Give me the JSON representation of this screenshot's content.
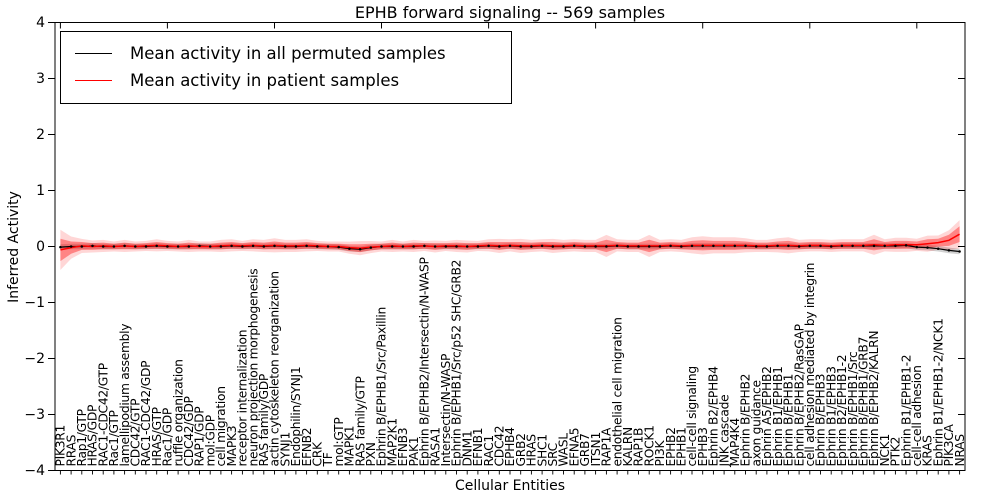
{
  "figure": {
    "title": "EPHB forward signaling -- 569 samples",
    "xlabel": "Cellular Entities",
    "ylabel": "Inferred Activity"
  },
  "chart_data": {
    "type": "line",
    "title": "EPHB forward signaling -- 569 samples",
    "xlabel": "Cellular Entities",
    "ylabel": "Inferred Activity",
    "ylim": [
      -4,
      4
    ],
    "yticks": [
      -4,
      -3,
      -2,
      -1,
      0,
      1,
      2,
      3,
      4
    ],
    "grid": false,
    "legend_position": "upper left",
    "categories": [
      "PIK3R1",
      "RRAS",
      "Rap1/GTP",
      "HRAS/GDP",
      "RAC1-CDC42/GTP",
      "Rac1/GTP",
      "lamellipodium assembly",
      "CDC42/GTP",
      "RAC1-CDC42/GDP",
      "HRAS/GTP",
      "Rac1/GDP",
      "ruffle organization",
      "CDC42/GDP",
      "RAP1/GDP",
      "mol:GDP",
      "cell migration",
      "MAPK3",
      "receptor internalization",
      "neuron projection morphogenesis",
      "RAS family/GDP",
      "actin cytoskeleton reorganization",
      "SYNJ1",
      "Endophilin/SYNJ1",
      "EFNB2",
      "CRK",
      "TF",
      "mol:GTP",
      "MAPK1",
      "RAS family/GTP",
      "PXN",
      "Ephrin B/EPHB1/Src/Paxillin",
      "MAP2K1",
      "EFNB3",
      "PAK1",
      "Ephrin B/EPHB2/Intersectin/N-WASP",
      "RASA1",
      "Intersectin/N-WASP",
      "Ephrin B/EPHB1/Src/p52 SHC/GRB2",
      "DNM1",
      "EFNB1",
      "RAC1",
      "CDC42",
      "EPHB4",
      "GRB2",
      "HRAS",
      "SHC1",
      "SRC",
      "WASL",
      "EFNA5",
      "GRB7",
      "ITSN1",
      "RAP1A",
      "endothelial cell migration",
      "KALRN",
      "RAP1B",
      "ROCK1",
      "PI3K",
      "EPHB2",
      "EPHB1",
      "cell-cell signaling",
      "EPHB3",
      "Ephrin B2/EPHB4",
      "JNK cascade",
      "MAP4K4",
      "Ephrin B/EPHB2",
      "axon guidance",
      "Ephrin A5/EPHB2",
      "Ephrin B1/EPHB1",
      "Ephrin B/EPHB1",
      "Ephrin B/EPHB2/RasGAP",
      "cell adhesion mediated by integrin",
      "Ephrin B/EPHB3",
      "Ephrin B1/EPHB3",
      "Ephrin B2/EPHB1-2",
      "Ephrin B/EPHB1/Src",
      "Ephrin B/EPHB1/GRB7",
      "Ephrin B/EPHB2/KALRN",
      "NCK1",
      "PTK2",
      "Ephrin B1/EPHB1-2",
      "cell-cell adhesion",
      "KRAS",
      "Ephrin B1/EPHB1-2/NCK1",
      "PIK3CA",
      "NRAS"
    ],
    "series": [
      {
        "name": "Mean activity in all permuted samples",
        "color": "#000000",
        "marker": "dot",
        "band_halfwidth": 0.05,
        "values": [
          -0.01,
          0,
          0,
          0.01,
          0,
          0,
          0.01,
          0,
          0,
          0.01,
          0,
          0,
          0,
          0.01,
          0,
          0,
          0.01,
          0,
          0.01,
          0,
          0.01,
          0,
          0,
          0.01,
          0,
          0,
          -0.01,
          -0.04,
          -0.05,
          -0.02,
          0,
          0,
          0,
          0,
          0.01,
          0,
          0,
          0,
          0,
          0,
          0.01,
          0,
          0.01,
          0,
          0,
          0.01,
          0,
          0,
          0.01,
          0,
          0,
          0,
          0.01,
          0,
          0,
          0,
          0,
          0.01,
          0,
          0.01,
          0.01,
          0.01,
          0.01,
          0.01,
          0.01,
          0,
          0,
          0.01,
          0.01,
          0,
          0.01,
          0.01,
          0,
          0.01,
          0.01,
          0.01,
          0.01,
          0.01,
          0.01,
          0.02,
          -0.01,
          -0.02,
          -0.04,
          -0.07,
          -0.09
        ]
      },
      {
        "name": "Mean activity in patient samples",
        "color": "#ff0000",
        "marker": "none",
        "band_halfwidths": [
          0.2,
          0.11,
          0.07,
          0.06,
          0.06,
          0.05,
          0.06,
          0.05,
          0.05,
          0.06,
          0.05,
          0.05,
          0.06,
          0.05,
          0.05,
          0.06,
          0.06,
          0.05,
          0.06,
          0.06,
          0.07,
          0.06,
          0.06,
          0.06,
          0.05,
          0.05,
          0.05,
          0.06,
          0.07,
          0.06,
          0.05,
          0.06,
          0.05,
          0.06,
          0.05,
          0.06,
          0.05,
          0.06,
          0.06,
          0.05,
          0.06,
          0.07,
          0.06,
          0.07,
          0.06,
          0.06,
          0.07,
          0.06,
          0.06,
          0.06,
          0.06,
          0.11,
          0.06,
          0.06,
          0.06,
          0.11,
          0.06,
          0.06,
          0.06,
          0.08,
          0.09,
          0.08,
          0.08,
          0.08,
          0.07,
          0.06,
          0.06,
          0.07,
          0.08,
          0.06,
          0.06,
          0.06,
          0.06,
          0.06,
          0.06,
          0.06,
          0.1,
          0.06,
          0.07,
          0.07,
          0.06,
          0.08,
          0.07,
          0.1,
          0.14
        ],
        "values": [
          -0.06,
          -0.02,
          0.01,
          0,
          0.01,
          0,
          0.01,
          0,
          0.01,
          0.02,
          0.01,
          0,
          0.01,
          0,
          0,
          0.01,
          0.02,
          0.01,
          0.02,
          0.01,
          0.02,
          0.01,
          0.01,
          0.02,
          0.01,
          0,
          0,
          -0.02,
          -0.03,
          -0.01,
          0,
          0.01,
          0,
          0.01,
          0.01,
          0,
          0.01,
          0.01,
          0,
          0.01,
          0.02,
          0.01,
          0.02,
          0.01,
          0.01,
          0.02,
          0.01,
          0.01,
          0.02,
          0.01,
          0.01,
          0.01,
          0.02,
          0.01,
          0.01,
          0.01,
          0.01,
          0.02,
          0.01,
          0.02,
          0.02,
          0.02,
          0.02,
          0.02,
          0.02,
          0.01,
          0.01,
          0.02,
          0.02,
          0.01,
          0.02,
          0.02,
          0.01,
          0.02,
          0.02,
          0.02,
          0.03,
          0.02,
          0.03,
          0.03,
          0.03,
          0.05,
          0.07,
          0.11,
          0.22
        ]
      }
    ]
  }
}
